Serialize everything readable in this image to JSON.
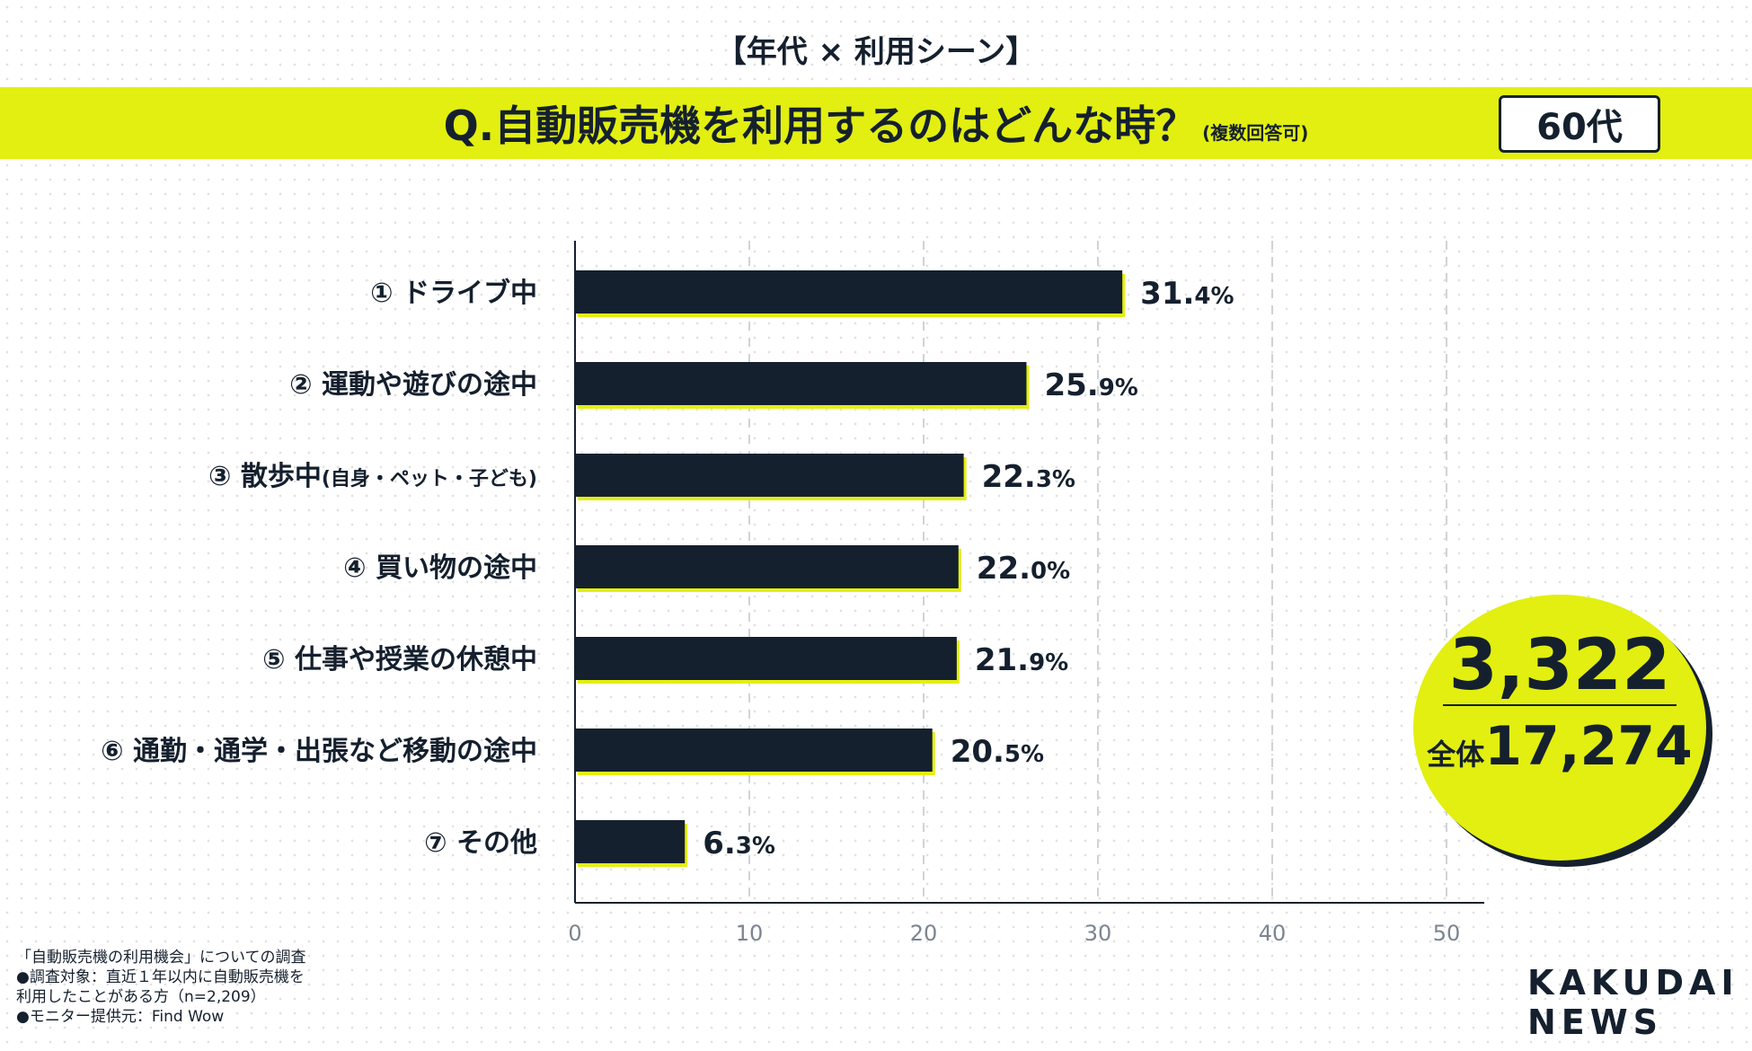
{
  "header": {
    "topic": "【年代 × 利用シーン】",
    "question": "Q.自動販売機を利用するのはどんな時？",
    "question_note": "(複数回答可)",
    "age_badge": "60代"
  },
  "colors": {
    "accent": "#e2ef10",
    "bar": "#15202e",
    "text": "#15202e",
    "grid": "#cfd3d8"
  },
  "chart_data": {
    "type": "bar",
    "orientation": "horizontal",
    "categories": [
      {
        "label": "① ドライブ中",
        "sub": ""
      },
      {
        "label": "② 運動や遊びの途中",
        "sub": ""
      },
      {
        "label": "③ 散歩中",
        "sub": "(自身・ペット・子ども)"
      },
      {
        "label": "④ 買い物の途中",
        "sub": ""
      },
      {
        "label": "⑤ 仕事や授業の休憩中",
        "sub": ""
      },
      {
        "label": "⑥ 通勤・通学・出張など移動の途中",
        "sub": ""
      },
      {
        "label": "⑦ その他",
        "sub": ""
      }
    ],
    "values": [
      31.4,
      25.9,
      22.3,
      22.0,
      21.9,
      20.5,
      6.3
    ],
    "value_labels": [
      {
        "int": "31.",
        "dec": "4%"
      },
      {
        "int": "25.",
        "dec": "9%"
      },
      {
        "int": "22.",
        "dec": "3%"
      },
      {
        "int": "22.",
        "dec": "0%"
      },
      {
        "int": "21.",
        "dec": "9%"
      },
      {
        "int": "20.",
        "dec": "5%"
      },
      {
        "int": "6.",
        "dec": "3%"
      }
    ],
    "xlim": [
      0,
      50
    ],
    "xticks": [
      0,
      10,
      20,
      30,
      40,
      50
    ],
    "grid": true,
    "legend": "none"
  },
  "sample_counts": {
    "segment": "3,322",
    "total_label": "全体",
    "total": "17,274"
  },
  "footnote": {
    "lines": [
      "「自動販売機の利用機会」についての調査",
      "●調査対象：直近１年以内に自動販売機を",
      "利用したことがある方（n=2,209）",
      "●モニター提供元：Find Wow"
    ]
  },
  "logo": {
    "line1": "KAKUDAI",
    "line2": "NEWS"
  }
}
